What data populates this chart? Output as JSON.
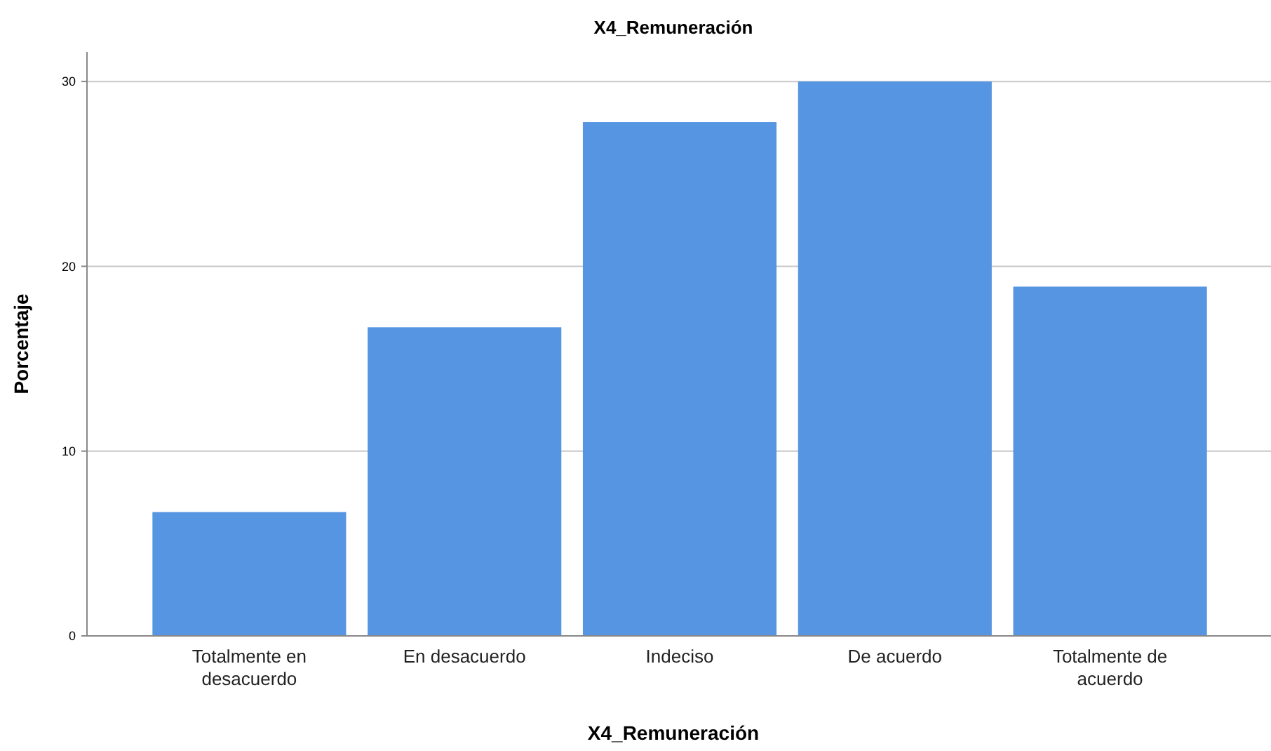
{
  "chart_data": {
    "type": "bar",
    "title": "X4_Remuneración",
    "xlabel": "X4_Remuneración",
    "ylabel": "Porcentaje",
    "categories": [
      "Totalmente en desacuerdo",
      "En desacuerdo",
      "Indeciso",
      "De acuerdo",
      "Totalmente de acuerdo"
    ],
    "values": [
      6.7,
      16.7,
      27.8,
      30.0,
      18.9
    ],
    "color": "#5595e2",
    "ylim": [
      0,
      31.6
    ],
    "yticks": [
      0,
      10,
      20,
      30
    ],
    "grid": "y"
  }
}
